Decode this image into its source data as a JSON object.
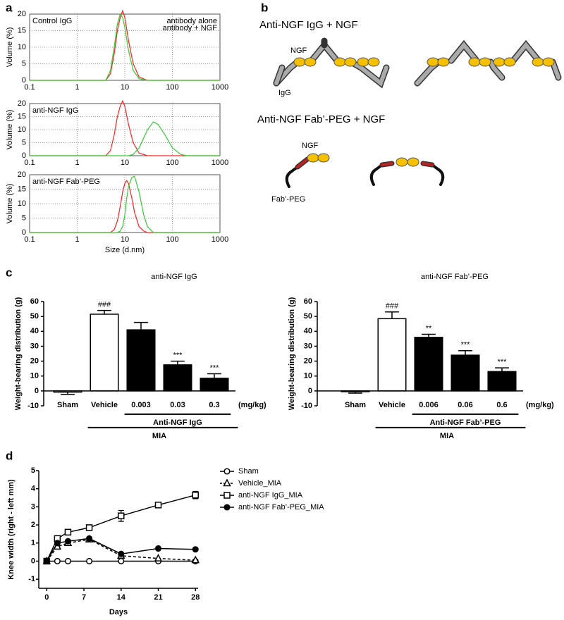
{
  "panels": [
    "a",
    "b",
    "c",
    "d"
  ],
  "diagram": {
    "title_igg": "Anti-NGF IgG + NGF",
    "ngf_label_1": "NGF",
    "igg_label": "IgG",
    "title_fab": "Anti-NGF Fab’-PEG + NGF",
    "ngf_label_2": "NGF",
    "fab_label": "Fab’-PEG"
  },
  "chart_data": [
    {
      "type": "line",
      "title": "Control IgG",
      "ylabel": "Volume (%)",
      "xscale": "log",
      "grid": true,
      "frame": true,
      "legend": "upper right",
      "x": [
        0.1,
        4,
        5,
        6,
        7,
        8,
        9,
        10,
        12,
        15,
        20,
        30,
        1000
      ],
      "series": [
        {
          "name": "antibody alone",
          "color": "#ff2020",
          "values": [
            0,
            0,
            2,
            8,
            15,
            19,
            21,
            19,
            12,
            5,
            1,
            0,
            0
          ]
        },
        {
          "name": "antibody + NGF",
          "color": "#33cc33",
          "values": [
            0,
            0,
            3,
            10,
            17,
            20,
            19,
            16,
            9,
            3,
            0.5,
            0,
            0
          ]
        }
      ],
      "xlim": [
        0.1,
        1000
      ],
      "xticks": [
        0.1,
        1,
        10,
        100,
        1000
      ],
      "ylim": [
        0,
        20
      ],
      "yticks": [
        0,
        5,
        10,
        15,
        20
      ]
    },
    {
      "type": "line",
      "title": "anti-NGF IgG",
      "ylabel": "Volume (%)",
      "xscale": "log",
      "grid": true,
      "frame": true,
      "x": [
        0.1,
        4,
        5,
        6,
        7,
        8,
        9,
        10,
        12,
        15,
        20,
        30,
        40,
        50,
        70,
        100,
        150,
        200,
        1000
      ],
      "series": [
        {
          "color": "#ff2020",
          "values": [
            0,
            0,
            2,
            8,
            15,
            19,
            21,
            19,
            12,
            5,
            1,
            0,
            0,
            0,
            0,
            0,
            0,
            0,
            0
          ]
        },
        {
          "color": "#33cc33",
          "values": [
            0,
            0,
            0,
            0,
            0,
            0,
            0,
            0,
            0,
            0.5,
            3,
            10,
            13,
            12,
            8,
            3,
            0.5,
            0,
            0
          ]
        }
      ],
      "xlim": [
        0.1,
        1000
      ],
      "xticks": [
        0.1,
        1,
        10,
        100,
        1000
      ],
      "ylim": [
        0,
        20
      ],
      "yticks": [
        0,
        5,
        10,
        15,
        20
      ]
    },
    {
      "type": "line",
      "title": "anti-NGF Fab’-PEG",
      "ylabel": "Volume (%)",
      "xlabel": "Size (d.nm)",
      "xscale": "log",
      "grid": true,
      "frame": true,
      "x": [
        0.1,
        5,
        6,
        7,
        8,
        9,
        10,
        11,
        12,
        14,
        16,
        20,
        25,
        30,
        40,
        1000
      ],
      "series": [
        {
          "color": "#ff2020",
          "values": [
            0,
            0,
            1,
            4,
            9,
            14,
            17,
            18,
            17,
            12,
            7,
            2,
            0.5,
            0,
            0,
            0
          ]
        },
        {
          "color": "#33cc33",
          "values": [
            0,
            0,
            0,
            0,
            0.5,
            2,
            6,
            12,
            16,
            19,
            19.5,
            14,
            6,
            2,
            0,
            0
          ]
        }
      ],
      "xlim": [
        0.1,
        1000
      ],
      "xticks": [
        0.1,
        1,
        10,
        100,
        1000
      ],
      "ylim": [
        0,
        20
      ],
      "yticks": [
        0,
        5,
        10,
        15,
        20
      ]
    },
    {
      "type": "bar",
      "title": "anti-NGF IgG",
      "ylabel": "Weight-bearing distribution (g)",
      "x_unit": "(mg/kg)",
      "categories": [
        "Sham",
        "Vehicle",
        "0.003",
        "0.03",
        "0.3"
      ],
      "values": [
        -0.8,
        51.5,
        41,
        17.5,
        8.5
      ],
      "errors": [
        1.5,
        2.5,
        5,
        2.5,
        3
      ],
      "colors": [
        "#ffffff",
        "#ffffff",
        "#000000",
        "#000000",
        "#000000"
      ],
      "annotations": [
        {
          "category": "Vehicle",
          "text": "###"
        },
        {
          "category": "0.03",
          "text": "***"
        },
        {
          "category": "0.3",
          "text": "***"
        }
      ],
      "groups": [
        {
          "label": "Anti-NGF IgG",
          "from": "0.003",
          "to": "0.3"
        },
        {
          "label": "MIA",
          "from": "Vehicle",
          "to": "0.3"
        }
      ],
      "ylim": [
        -10,
        60
      ],
      "yticks": [
        -10,
        0,
        10,
        20,
        30,
        40,
        50,
        60
      ]
    },
    {
      "type": "bar",
      "title": "anti-NGF Fab’-PEG",
      "ylabel": "Weight-bearing distribution (g)",
      "x_unit": "(mg/kg)",
      "categories": [
        "Sham",
        "Vehicle",
        "0.006",
        "0.06",
        "0.6"
      ],
      "values": [
        -0.5,
        48.5,
        36,
        24,
        13
      ],
      "errors": [
        1,
        4.5,
        2,
        3,
        2.5
      ],
      "colors": [
        "#ffffff",
        "#ffffff",
        "#000000",
        "#000000",
        "#000000"
      ],
      "annotations": [
        {
          "category": "Vehicle",
          "text": "###"
        },
        {
          "category": "0.006",
          "text": "**"
        },
        {
          "category": "0.06",
          "text": "***"
        },
        {
          "category": "0.6",
          "text": "***"
        }
      ],
      "groups": [
        {
          "label": "Anti-NGF Fab’-PEG",
          "from": "0.006",
          "to": "0.6"
        },
        {
          "label": "MIA",
          "from": "Vehicle",
          "to": "0.6"
        }
      ],
      "ylim": [
        -10,
        60
      ],
      "yticks": [
        -10,
        0,
        10,
        20,
        30,
        40,
        50,
        60
      ]
    },
    {
      "type": "line",
      "xlabel": "Days",
      "ylabel": "Knee width (right - left mm)",
      "legend": "outside right",
      "x": [
        0,
        2,
        4,
        8,
        14,
        21,
        28
      ],
      "series": [
        {
          "name": "Sham",
          "color": "#000000",
          "marker": "circle-open",
          "values": [
            0,
            0,
            0,
            0,
            0,
            0,
            0
          ]
        },
        {
          "name": "Vehicle_MIA",
          "color": "#000000",
          "marker": "triangle-open",
          "dash": true,
          "values": [
            0,
            0.8,
            1.0,
            1.2,
            0.3,
            0.15,
            0.05
          ]
        },
        {
          "name": "anti-NGF IgG_MIA",
          "color": "#000000",
          "marker": "square-open",
          "values": [
            0,
            1.25,
            1.6,
            1.85,
            2.5,
            3.1,
            3.65
          ],
          "errors": [
            0,
            0.1,
            0.1,
            0.1,
            0.3,
            0.1,
            0.2
          ]
        },
        {
          "name": "anti-NGF Fab’-PEG_MIA",
          "color": "#000000",
          "marker": "circle-filled",
          "values": [
            0,
            1.0,
            1.1,
            1.25,
            0.4,
            0.7,
            0.65
          ]
        }
      ],
      "xlim": [
        -1.5,
        28.5
      ],
      "xticks": [
        0,
        7,
        14,
        21,
        28
      ],
      "ylim": [
        -1.5,
        5
      ],
      "yticks": [
        -1,
        0,
        1,
        2,
        3,
        4,
        5
      ]
    }
  ]
}
